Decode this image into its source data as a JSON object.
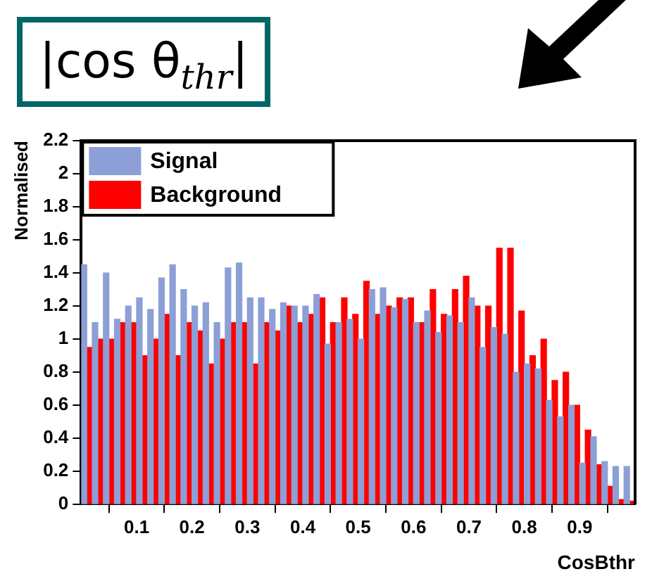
{
  "chart_data": {
    "type": "histogram",
    "title": "|cos θ$_{thr}$|",
    "xlabel": "CosBthr",
    "ylabel": "Normalised",
    "bins": [
      0,
      0.02,
      0.04,
      0.06,
      0.08,
      0.1,
      0.12,
      0.14,
      0.16,
      0.18,
      0.2,
      0.22,
      0.24,
      0.26,
      0.28,
      0.3,
      0.32,
      0.34,
      0.36,
      0.38,
      0.4,
      0.42,
      0.44,
      0.46,
      0.48,
      0.5,
      0.52,
      0.54,
      0.56,
      0.58,
      0.6,
      0.62,
      0.64,
      0.66,
      0.68,
      0.7,
      0.72,
      0.74,
      0.76,
      0.78,
      0.8,
      0.82,
      0.84,
      0.86,
      0.88,
      0.9,
      0.92,
      0.94,
      0.96,
      0.98,
      1
    ],
    "series": [
      {
        "name": "Signal",
        "color": "#8c9fd6",
        "values": [
          1.45,
          1.1,
          1.4,
          1.12,
          1.2,
          1.25,
          1.18,
          1.37,
          1.45,
          1.3,
          1.2,
          1.22,
          1.1,
          1.43,
          1.46,
          1.25,
          1.25,
          1.18,
          1.22,
          1.2,
          1.2,
          1.27,
          0.97,
          1.1,
          1.12,
          1.0,
          1.3,
          1.31,
          1.19,
          1.24,
          1.1,
          1.17,
          1.04,
          1.14,
          1.1,
          1.25,
          0.95,
          1.07,
          1.03,
          0.8,
          0.85,
          0.82,
          0.63,
          0.53,
          0.6,
          0.25,
          0.41,
          0.26,
          0.23,
          0.23
        ]
      },
      {
        "name": "Background",
        "color": "#ff0000",
        "values": [
          0.95,
          1.0,
          1.0,
          1.1,
          1.1,
          0.9,
          1.0,
          1.15,
          0.9,
          1.1,
          1.05,
          0.85,
          1.0,
          1.1,
          1.1,
          0.85,
          1.1,
          1.05,
          1.2,
          1.1,
          1.15,
          1.25,
          1.1,
          1.25,
          1.15,
          1.35,
          1.15,
          1.2,
          1.25,
          1.25,
          1.1,
          1.3,
          1.15,
          1.3,
          1.38,
          1.2,
          1.2,
          1.55,
          1.55,
          1.17,
          0.9,
          1.0,
          0.75,
          0.8,
          0.6,
          0.45,
          0.24,
          0.11,
          0.03,
          0.02
        ]
      }
    ],
    "xlim": [
      0,
      1
    ],
    "ylim": [
      0,
      2.2
    ],
    "xticks": [
      0.1,
      0.2,
      0.3,
      0.4,
      0.5,
      0.6,
      0.7,
      0.8,
      0.9
    ],
    "yticks": [
      0,
      0.2,
      0.4,
      0.6,
      0.8,
      1,
      1.2,
      1.4,
      1.6,
      1.8,
      2,
      2.2
    ],
    "legend": "top left",
    "grid": false
  }
}
